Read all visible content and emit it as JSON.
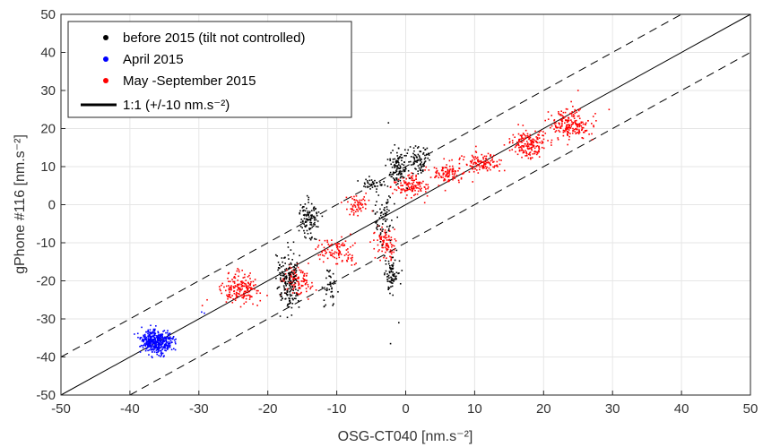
{
  "chart_data": {
    "type": "scatter",
    "xlabel": "OSG-CT040 [nm.s⁻²]",
    "ylabel": "gPhone #116 [nm.s⁻²]",
    "xlim": [
      -50,
      50
    ],
    "ylim": [
      -50,
      50
    ],
    "xticks": [
      "-50",
      "-40",
      "-30",
      "-20",
      "-10",
      "0",
      "10",
      "20",
      "30",
      "40",
      "50"
    ],
    "yticks": [
      "-50",
      "-40",
      "-30",
      "-20",
      "-10",
      "0",
      "10",
      "20",
      "30",
      "40",
      "50"
    ],
    "grid": true,
    "legend_position": "top-left",
    "series": [
      {
        "name": "before 2015 (tilt not controlled)",
        "color": "#000000",
        "clusters": [
          {
            "x": -17,
            "y": -20,
            "sx": 1.5,
            "sy": 9,
            "n": 170
          },
          {
            "x": -14,
            "y": -4,
            "sx": 1.5,
            "sy": 5,
            "n": 110
          },
          {
            "x": -11,
            "y": -22,
            "sx": 1,
            "sy": 6,
            "n": 40
          },
          {
            "x": -1,
            "y": 10,
            "sx": 1.5,
            "sy": 5,
            "n": 110
          },
          {
            "x": 2,
            "y": 12,
            "sx": 1.5,
            "sy": 4,
            "n": 80
          },
          {
            "x": -2,
            "y": -18,
            "sx": 1.2,
            "sy": 6,
            "n": 80
          },
          {
            "x": -3,
            "y": -3,
            "sx": 1.5,
            "sy": 6,
            "n": 70
          },
          {
            "x": -5,
            "y": 5,
            "sx": 2,
            "sy": 3,
            "n": 40
          }
        ],
        "points": [
          [
            -2.5,
            21.5
          ],
          [
            -2.2,
            -36.5
          ],
          [
            -1,
            -31
          ]
        ]
      },
      {
        "name": "April 2015",
        "color": "#0000ff",
        "clusters": [
          {
            "x": -36,
            "y": -36,
            "sx": 2.5,
            "sy": 3.2,
            "n": 420
          }
        ],
        "points": [
          [
            -29.2,
            -28.5
          ],
          [
            -29.6,
            -28.2
          ]
        ]
      },
      {
        "name": "May -September 2015",
        "color": "#ff0000",
        "clusters": [
          {
            "x": -24,
            "y": -22,
            "sx": 3,
            "sy": 4,
            "n": 180
          },
          {
            "x": -16,
            "y": -20,
            "sx": 2.5,
            "sy": 4,
            "n": 120
          },
          {
            "x": -10,
            "y": -12,
            "sx": 3,
            "sy": 3.5,
            "n": 100
          },
          {
            "x": -3,
            "y": -10,
            "sx": 2,
            "sy": 4,
            "n": 90
          },
          {
            "x": 1,
            "y": 5,
            "sx": 2.5,
            "sy": 3,
            "n": 120
          },
          {
            "x": 6,
            "y": 8,
            "sx": 2.5,
            "sy": 3,
            "n": 100
          },
          {
            "x": 11,
            "y": 11,
            "sx": 3,
            "sy": 3,
            "n": 120
          },
          {
            "x": 18,
            "y": 16,
            "sx": 3,
            "sy": 4,
            "n": 180
          },
          {
            "x": 24,
            "y": 21,
            "sx": 3,
            "sy": 4,
            "n": 200
          },
          {
            "x": -7,
            "y": 0,
            "sx": 2,
            "sy": 3,
            "n": 60
          }
        ],
        "points": [
          [
            -29.5,
            -26.5
          ],
          [
            -28.8,
            -25
          ],
          [
            29.5,
            25
          ],
          [
            25,
            30
          ]
        ]
      },
      {
        "name": "1:1 (+/-10 nm.s⁻²)",
        "color": "#000000",
        "line_type": "identity",
        "offset_band": 10
      }
    ]
  }
}
